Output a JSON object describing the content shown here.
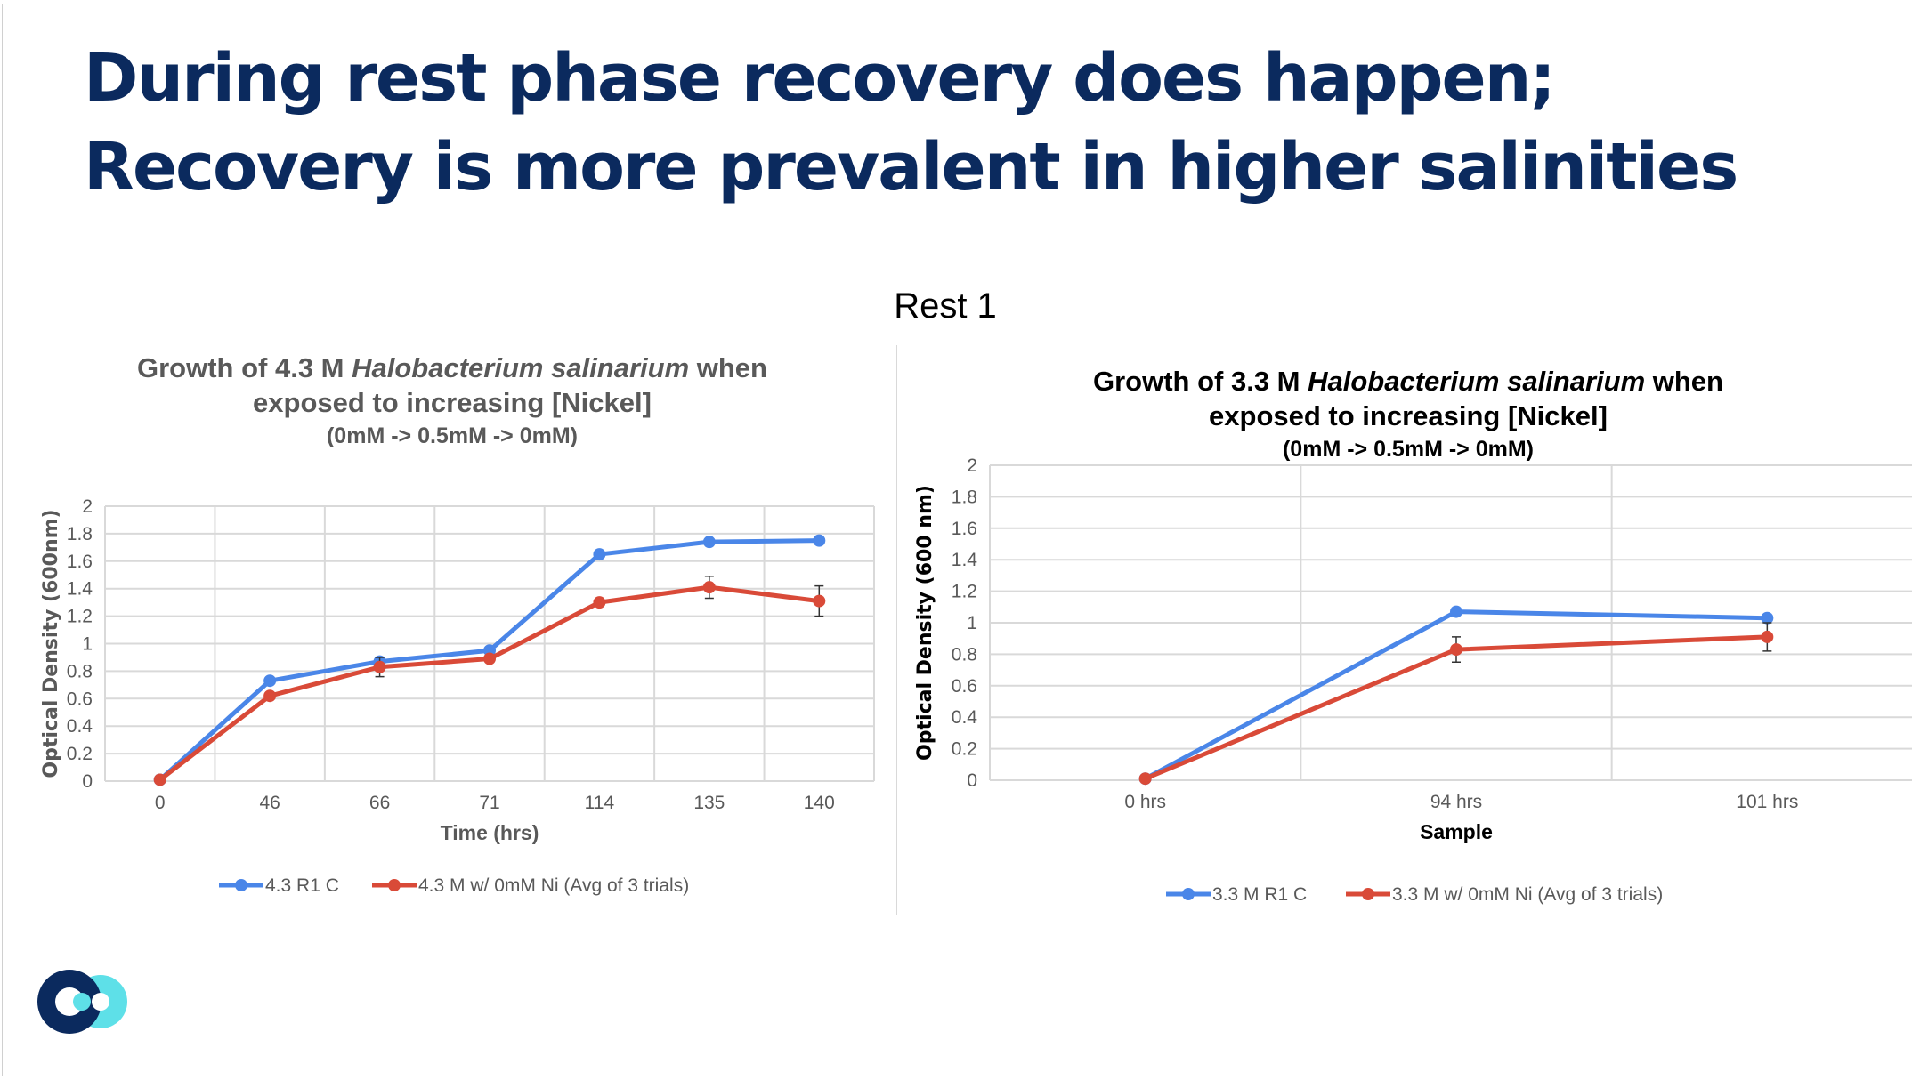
{
  "slide": {
    "title_line1": "During rest phase recovery does happen;",
    "title_line2": "Recovery is more prevalent in higher salinities",
    "section_label": "Rest 1"
  },
  "colors": {
    "title": "#0b2a5e",
    "series_blue": "#4a86e8",
    "series_red": "#d94a38",
    "logo_dark": "#0b2a5e",
    "logo_light": "#5ee0e8"
  },
  "chart_data": [
    {
      "type": "line",
      "title_pre": "Growth of 4.3 M ",
      "title_italic": "Halobacterium salinarium",
      "title_post": " when",
      "title_line2": "exposed to increasing [Nickel]",
      "title_line3": "(0mM -> 0.5mM -> 0mM)",
      "title_color": "#595959",
      "xlabel": "Time (hrs)",
      "ylabel": "Optical Density (600nm)",
      "ylim": [
        0,
        2
      ],
      "yticks": [
        "0",
        "0.2",
        "0.4",
        "0.6",
        "0.8",
        "1",
        "1.2",
        "1.4",
        "1.6",
        "1.8",
        "2"
      ],
      "categories": [
        "0",
        "46",
        "66",
        "71",
        "114",
        "135",
        "140"
      ],
      "grid": "both",
      "legend": "bottom",
      "series": [
        {
          "name": "4.3 R1 C",
          "values": [
            0.01,
            0.73,
            0.87,
            0.95,
            1.65,
            1.74,
            1.75
          ]
        },
        {
          "name": "4.3 M w/ 0mM Ni (Avg of 3 trials)",
          "values": [
            0.01,
            0.62,
            0.83,
            0.89,
            1.3,
            1.41,
            1.31
          ],
          "error": [
            0,
            0.01,
            0.07,
            0.02,
            0.03,
            0.08,
            0.11
          ]
        }
      ]
    },
    {
      "type": "line",
      "title_pre": "Growth of 3.3 M ",
      "title_italic": "Halobacterium salinarium",
      "title_post": " when",
      "title_line2": "exposed to increasing [Nickel]",
      "title_line3": "(0mM -> 0.5mM -> 0mM)",
      "title_color": "#000000",
      "xlabel": "Sample",
      "ylabel": "Optical Density (600 nm)",
      "ylim": [
        0,
        2
      ],
      "yticks": [
        "0",
        "0.2",
        "0.4",
        "0.6",
        "0.8",
        "1",
        "1.2",
        "1.4",
        "1.6",
        "1.8",
        "2"
      ],
      "categories": [
        "0 hrs",
        "94 hrs",
        "101 hrs"
      ],
      "grid": "both",
      "legend": "bottom",
      "series": [
        {
          "name": "3.3 M R1 C",
          "values": [
            0.01,
            1.07,
            1.03
          ]
        },
        {
          "name": "3.3 M w/ 0mM Ni (Avg of 3 trials)",
          "values": [
            0.01,
            0.83,
            0.91
          ],
          "error": [
            0,
            0.08,
            0.09
          ]
        }
      ]
    }
  ]
}
